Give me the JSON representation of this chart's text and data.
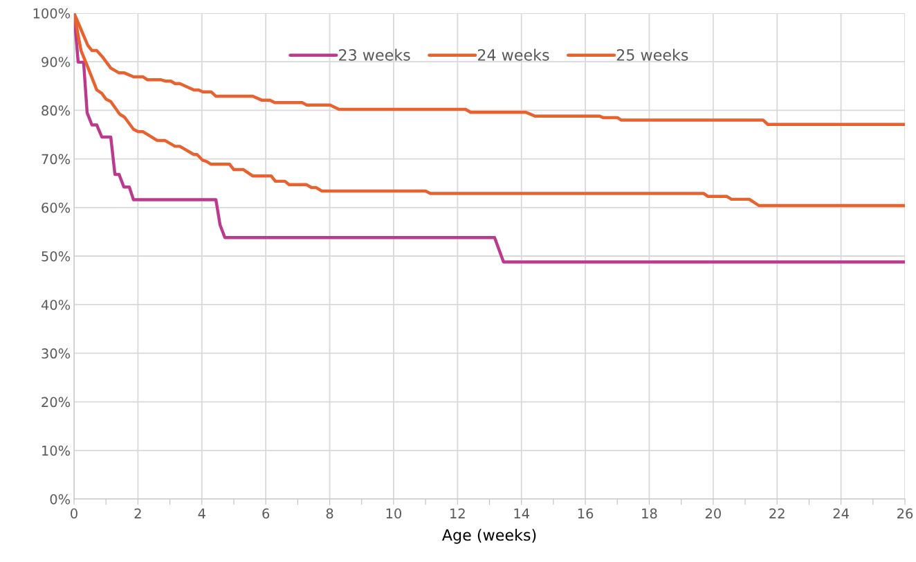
{
  "chart_data": {
    "type": "line",
    "xlabel": "Age (weeks)",
    "xlim": [
      0,
      26
    ],
    "ylim": [
      0,
      100
    ],
    "xticks": [
      0,
      {
        "value": 1,
        "label": null
      },
      2,
      {
        "value": 3,
        "label": null
      },
      4,
      {
        "value": 5,
        "label": null
      },
      6,
      {
        "value": 7,
        "label": null
      },
      8,
      {
        "value": 9,
        "label": null
      },
      10,
      {
        "value": 11,
        "label": null
      },
      12,
      {
        "value": 13,
        "label": null
      },
      14,
      {
        "value": 15,
        "label": null
      },
      16,
      {
        "value": 17,
        "label": null
      },
      18,
      {
        "value": 19,
        "label": null
      },
      20,
      {
        "value": 21,
        "label": null
      },
      22,
      {
        "value": 23,
        "label": null
      },
      24,
      {
        "value": 25,
        "label": null
      },
      26
    ],
    "yticks": [
      {
        "value": 0,
        "label": "0%"
      },
      {
        "value": 10,
        "label": "10%"
      },
      {
        "value": 20,
        "label": "20%"
      },
      {
        "value": 30,
        "label": "30%"
      },
      {
        "value": 40,
        "label": "40%"
      },
      {
        "value": 50,
        "label": "50%"
      },
      {
        "value": 60,
        "label": "60%"
      },
      {
        "value": 70,
        "label": "70%"
      },
      {
        "value": 80,
        "label": "80%"
      },
      {
        "value": 90,
        "label": "90%"
      },
      {
        "value": 100,
        "label": "100%"
      }
    ],
    "grid": true,
    "legend": "top",
    "marker": "none",
    "line_style": "solid",
    "series": [
      {
        "name": "23 weeks",
        "color": "#bb3a8e",
        "x": [
          0,
          0.13,
          0.3,
          0.41,
          0.56,
          0.71,
          0.87,
          1.15,
          1.28,
          1.41,
          1.56,
          1.73,
          1.86,
          4.44,
          4.57,
          4.72,
          13.16,
          13.44,
          26
        ],
        "values": [
          100,
          89.9,
          89.9,
          79.5,
          77,
          77,
          74.5,
          74.5,
          66.8,
          66.8,
          64.2,
          64.2,
          61.6,
          61.6,
          56.4,
          53.8,
          53.8,
          48.8,
          48.8
        ]
      },
      {
        "name": "24 weeks",
        "color": "#e8622f",
        "x": [
          0,
          0.22,
          0.43,
          0.71,
          0.87,
          1.0,
          1.15,
          1.43,
          1.58,
          1.86,
          2.01,
          2.16,
          2.6,
          2.84,
          3.16,
          3.31,
          3.75,
          3.85,
          4.03,
          4.14,
          4.29,
          4.87,
          5.0,
          5.3,
          5.59,
          6.17,
          6.3,
          6.6,
          6.73,
          7.28,
          7.43,
          7.58,
          7.75,
          11.0,
          11.15,
          19.7,
          19.83,
          20.42,
          20.57,
          21.13,
          21.43,
          26
        ],
        "values": [
          100,
          92.3,
          88.9,
          84.2,
          83.5,
          82.3,
          81.8,
          79.2,
          78.6,
          76.1,
          75.6,
          75.6,
          73.8,
          73.8,
          72.6,
          72.6,
          70.9,
          70.9,
          69.7,
          69.5,
          68.9,
          68.9,
          67.8,
          67.8,
          66.5,
          66.5,
          65.4,
          65.4,
          64.7,
          64.7,
          64.1,
          64.1,
          63.4,
          63.4,
          62.9,
          62.9,
          62.3,
          62.3,
          61.7,
          61.7,
          60.4,
          60.4
        ]
      },
      {
        "name": "25 weeks",
        "color": "#e8622f",
        "x": [
          0,
          0.17,
          0.43,
          0.56,
          0.71,
          0.89,
          1.15,
          1.41,
          1.58,
          1.86,
          2.16,
          2.29,
          2.71,
          2.88,
          3.03,
          3.16,
          3.31,
          3.75,
          3.9,
          4.03,
          4.29,
          4.44,
          5.59,
          5.87,
          6.13,
          6.28,
          7.14,
          7.28,
          8.01,
          8.29,
          12.25,
          12.41,
          14.14,
          14.42,
          16.45,
          16.56,
          17.0,
          17.12,
          21.56,
          21.71,
          26
        ],
        "values": [
          100,
          97.4,
          93.4,
          92.3,
          92.3,
          91.0,
          88.7,
          87.7,
          87.7,
          86.9,
          86.9,
          86.3,
          86.3,
          86.0,
          86.0,
          85.5,
          85.5,
          84.2,
          84.2,
          83.8,
          83.8,
          82.9,
          82.9,
          82.1,
          82.1,
          81.6,
          81.6,
          81.1,
          81.1,
          80.2,
          80.2,
          79.6,
          79.6,
          78.8,
          78.8,
          78.5,
          78.5,
          78.0,
          78.0,
          77.1,
          77.1
        ]
      }
    ]
  }
}
